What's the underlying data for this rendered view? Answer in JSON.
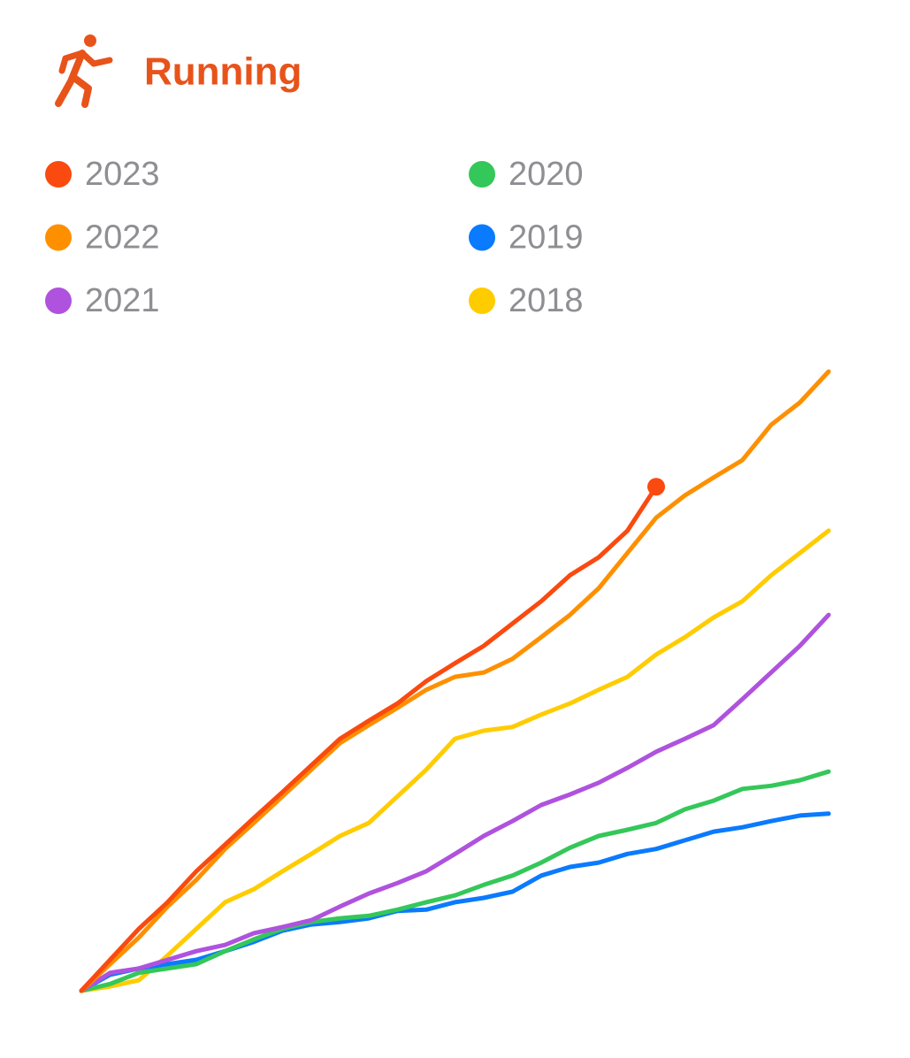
{
  "header": {
    "title": "Running"
  },
  "chart_data": {
    "type": "line",
    "series": [
      {
        "name": "2023",
        "color": "#fa4a0f",
        "values": [
          0,
          5,
          10,
          14.3,
          19.3,
          23.6,
          27.9,
          32.1,
          36.4,
          40.7,
          43.6,
          46.4,
          50,
          52.9,
          55.7,
          59.3,
          62.9,
          67.1,
          70,
          74.3,
          81.4
        ]
      },
      {
        "name": "2022",
        "color": "#fe9000",
        "values": [
          0,
          4.3,
          8.6,
          13.6,
          17.9,
          22.9,
          27.1,
          31.4,
          35.7,
          40,
          42.9,
          45.7,
          48.6,
          50.7,
          51.4,
          53.6,
          57.1,
          60.7,
          65,
          70.7,
          76.4,
          80,
          82.9,
          85.7,
          91.4,
          95,
          100
        ]
      },
      {
        "name": "2021",
        "color": "#af52de",
        "values": [
          0,
          2.9,
          3.6,
          5,
          6.4,
          7.4,
          9.3,
          10.3,
          11.4,
          13.6,
          15.7,
          17.4,
          19.3,
          22.1,
          25,
          27.4,
          30,
          31.7,
          33.6,
          36,
          38.6,
          40.7,
          42.9,
          47.1,
          51.4,
          55.7,
          60.7
        ]
      },
      {
        "name": "2020",
        "color": "#34c759",
        "values": [
          0,
          1.1,
          2.9,
          3.6,
          4.3,
          6.4,
          8.3,
          10,
          11.1,
          11.7,
          12.1,
          13.1,
          14.3,
          15.4,
          17.1,
          18.6,
          20.7,
          23.1,
          25,
          26,
          27.1,
          29.3,
          30.7,
          32.6,
          33.1,
          34,
          35.4
        ]
      },
      {
        "name": "2019",
        "color": "#0a7aff",
        "values": [
          0,
          2.6,
          3.6,
          4.3,
          5,
          6.4,
          7.9,
          9.7,
          10.7,
          11.1,
          11.7,
          12.9,
          13.1,
          14.3,
          15,
          16,
          18.6,
          20,
          20.7,
          22.1,
          22.9,
          24.3,
          25.7,
          26.4,
          27.4,
          28.3,
          28.6
        ]
      },
      {
        "name": "2018",
        "color": "#ffcc00",
        "values": [
          0,
          0.7,
          1.7,
          5.7,
          10,
          14.3,
          16.4,
          19.3,
          22.1,
          25,
          27.1,
          31.4,
          35.7,
          40.7,
          42,
          42.6,
          44.6,
          46.4,
          48.6,
          50.7,
          54.3,
          57.1,
          60.3,
          62.9,
          67.1,
          70.7,
          74.3
        ]
      }
    ]
  }
}
